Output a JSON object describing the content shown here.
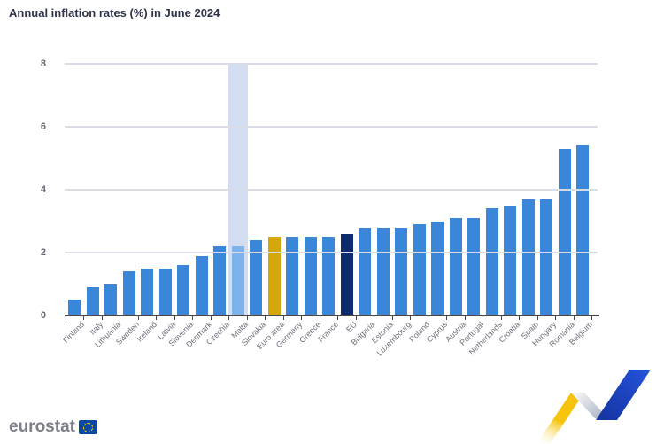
{
  "title": "Annual inflation rates (%) in June 2024",
  "chart_data": {
    "type": "bar",
    "title": "Annual inflation rates (%) in June 2024",
    "categories": [
      "Finland",
      "Italy",
      "Lithuania",
      "Sweden",
      "Ireland",
      "Latvia",
      "Slovenia",
      "Denmark",
      "Czechia",
      "Malta",
      "Slovakia",
      "Euro area",
      "Germany",
      "Greece",
      "France",
      "EU",
      "Bulgaria",
      "Estonia",
      "Luxembourg",
      "Poland",
      "Cyprus",
      "Austria",
      "Portugal",
      "Netherlands",
      "Croatia",
      "Spain",
      "Hungary",
      "Romania",
      "Belgium"
    ],
    "values": [
      0.5,
      0.9,
      1.0,
      1.4,
      1.5,
      1.5,
      1.6,
      1.9,
      2.2,
      2.2,
      2.4,
      2.5,
      2.5,
      2.5,
      2.5,
      2.6,
      2.8,
      2.8,
      2.8,
      2.9,
      3.0,
      3.1,
      3.1,
      3.4,
      3.5,
      3.7,
      3.7,
      5.3,
      5.4
    ],
    "xlabel": "",
    "ylabel": "",
    "ylim": [
      0,
      8
    ],
    "yticks": [
      0,
      2,
      4,
      6,
      8
    ],
    "grid": "horizontal-on-top",
    "legend": "none",
    "highlighted_category": "Malta",
    "special_bars": {
      "Malta": "light",
      "Euro area": "gold",
      "EU": "navy"
    },
    "colors": {
      "bar": "#3a87d9",
      "bar_light": "#7db3ec",
      "bar_gold": "#d4a70d",
      "bar_navy": "#0d2b6f",
      "highlight_band": "#d3ddf2",
      "gridline": "#d9dce6",
      "axis": "#44464c",
      "tick_labels": "#6b6f7a",
      "title": "#2e3349"
    }
  },
  "footer": {
    "logo_text": "eurostat"
  },
  "decoration": {
    "ribbon_yellow": "#f5c30e",
    "ribbon_gray": "#b3bac6",
    "ribbon_blue": "#1c45cc"
  }
}
